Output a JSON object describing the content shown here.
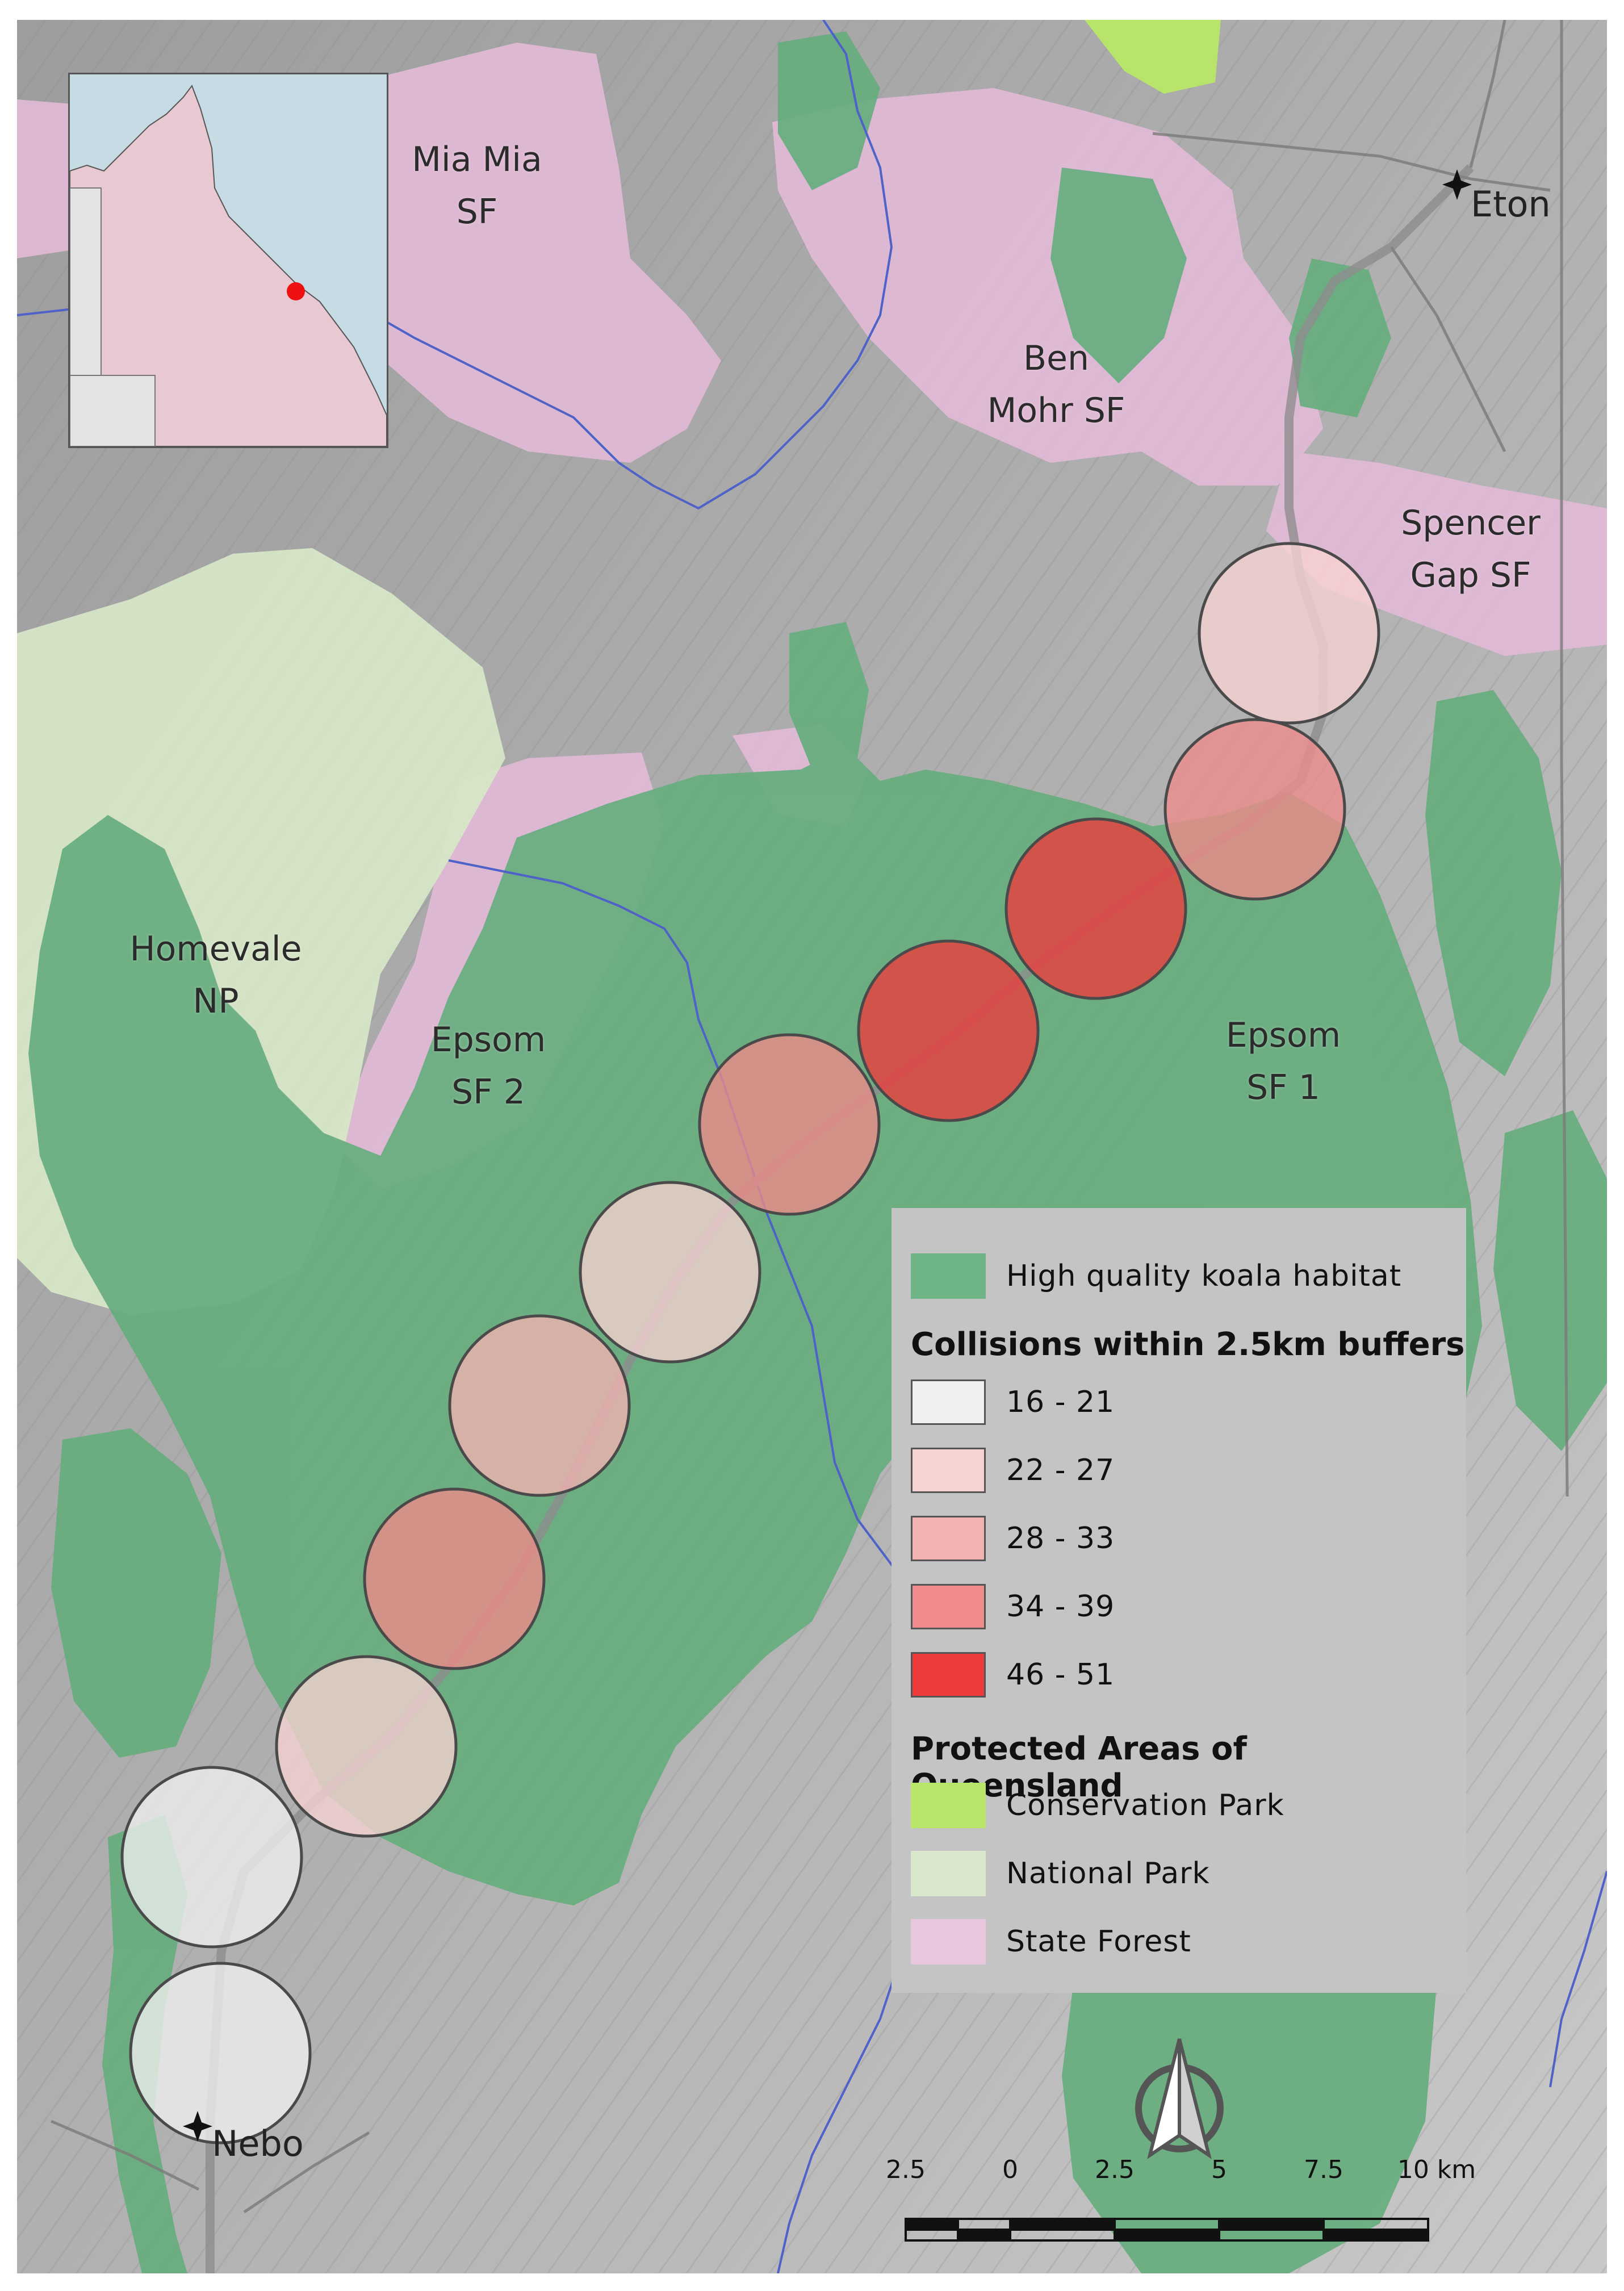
{
  "inset_map": {
    "land_color": "#e8c9d1",
    "sea_color": "#c6dbe4",
    "marker_color": "#ee1111"
  },
  "region_labels": [
    {
      "id": "mia-mia",
      "lines": [
        "Mia Mia",
        "SF"
      ]
    },
    {
      "id": "ben-mohr",
      "lines": [
        "Ben",
        "Mohr SF"
      ]
    },
    {
      "id": "spencer-gap",
      "lines": [
        "Spencer",
        "Gap SF"
      ]
    },
    {
      "id": "homevale",
      "lines": [
        "Homevale",
        "NP"
      ]
    },
    {
      "id": "epsom-2",
      "lines": [
        "Epsom",
        "SF 2"
      ]
    },
    {
      "id": "epsom-1",
      "lines": [
        "Epsom",
        "SF 1"
      ]
    }
  ],
  "towns": [
    {
      "id": "eton",
      "name": "Eton"
    },
    {
      "id": "nebo",
      "name": "Nebo"
    }
  ],
  "buffers": [
    {
      "class": "22 - 27"
    },
    {
      "class": "34 - 39"
    },
    {
      "class": "46 - 51"
    },
    {
      "class": "46 - 51"
    },
    {
      "class": "34 - 39"
    },
    {
      "class": "22 - 27"
    },
    {
      "class": "28 - 33"
    },
    {
      "class": "34 - 39"
    },
    {
      "class": "22 - 27"
    },
    {
      "class": "16 - 21"
    },
    {
      "class": "16 - 21"
    }
  ],
  "legend": {
    "habitat": {
      "label": "High quality koala habitat",
      "color": "#6fb487"
    },
    "collisions_title": "Collisions within 2.5km buffers",
    "collision_classes": [
      {
        "label": "16 - 21",
        "color": "#f0f0f0"
      },
      {
        "label": "22 - 27",
        "color": "#f7d2d2"
      },
      {
        "label": "28 - 33",
        "color": "#f3b2b2"
      },
      {
        "label": "34 - 39",
        "color": "#ef8b8b"
      },
      {
        "label": "46 - 51",
        "color": "#ee3a3a"
      }
    ],
    "protected_title": "Protected Areas of Queensland",
    "protected_classes": [
      {
        "label": "Conservation Park",
        "color": "#b8e56a"
      },
      {
        "label": "National Park",
        "color": "#d9e8cc"
      },
      {
        "label": "State Forest",
        "color": "#e8c6de"
      }
    ]
  },
  "scale_bar": {
    "ticks": [
      "2.5",
      "0",
      "2.5",
      "5",
      "7.5",
      "10 km"
    ]
  }
}
